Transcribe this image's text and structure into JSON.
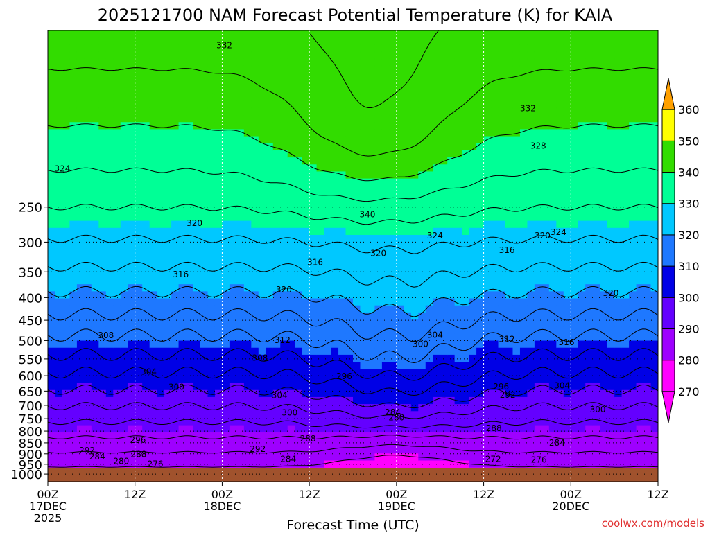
{
  "chart_data": {
    "type": "heatmap",
    "title": "2025121700 NAM Forecast Potential Temperature (K) for KAIA",
    "xlabel": "Forecast Time (UTC)",
    "ylabel": "",
    "y_ticks": [
      250,
      300,
      350,
      400,
      450,
      500,
      550,
      600,
      650,
      700,
      750,
      800,
      850,
      900,
      950,
      1000
    ],
    "y_range": [
      100,
      1040
    ],
    "x_range_hours": [
      0,
      84
    ],
    "x_ticks": [
      {
        "hour": 0,
        "l1": "00Z",
        "l2": "17DEC",
        "l3": "2025"
      },
      {
        "hour": 12,
        "l1": "12Z",
        "l2": "",
        "l3": ""
      },
      {
        "hour": 24,
        "l1": "00Z",
        "l2": "18DEC",
        "l3": ""
      },
      {
        "hour": 36,
        "l1": "12Z",
        "l2": "",
        "l3": ""
      },
      {
        "hour": 48,
        "l1": "00Z",
        "l2": "19DEC",
        "l3": ""
      },
      {
        "hour": 60,
        "l1": "12Z",
        "l2": "",
        "l3": ""
      },
      {
        "hour": 72,
        "l1": "00Z",
        "l2": "20DEC",
        "l3": ""
      },
      {
        "hour": 84,
        "l1": "12Z",
        "l2": "",
        "l3": ""
      }
    ],
    "surface_pressure": 968,
    "colorbar": {
      "levels": [
        270,
        280,
        290,
        300,
        310,
        320,
        330,
        340,
        350,
        360
      ],
      "colors": [
        "#ff00ff",
        "#9e00ff",
        "#6400ff",
        "#0000e6",
        "#1e78ff",
        "#00c8ff",
        "#00ff96",
        "#32dc00",
        "#ffff00",
        "#ffa000"
      ]
    },
    "contour_labels": [
      {
        "hour": 24.3,
        "p": 108,
        "value": "332"
      },
      {
        "hour": 2,
        "p": 205,
        "value": "324"
      },
      {
        "hour": 20.2,
        "p": 272,
        "value": "320"
      },
      {
        "hour": 18.3,
        "p": 355,
        "value": "316"
      },
      {
        "hour": 32.5,
        "p": 384,
        "value": "320"
      },
      {
        "hour": 36.8,
        "p": 333,
        "value": "316"
      },
      {
        "hour": 44,
        "p": 260,
        "value": "340"
      },
      {
        "hour": 45.5,
        "p": 318,
        "value": "320"
      },
      {
        "hour": 53.3,
        "p": 290,
        "value": "324"
      },
      {
        "hour": 63.2,
        "p": 313,
        "value": "316"
      },
      {
        "hour": 66.1,
        "p": 150,
        "value": "332"
      },
      {
        "hour": 67.5,
        "p": 182,
        "value": "328"
      },
      {
        "hour": 70.3,
        "p": 285,
        "value": "324"
      },
      {
        "hour": 68.1,
        "p": 290,
        "value": "320"
      },
      {
        "hour": 77.5,
        "p": 391,
        "value": "320"
      },
      {
        "hour": 8,
        "p": 487,
        "value": "308"
      },
      {
        "hour": 32.3,
        "p": 499,
        "value": "312"
      },
      {
        "hour": 29.2,
        "p": 547,
        "value": "308"
      },
      {
        "hour": 53.3,
        "p": 486,
        "value": "304"
      },
      {
        "hour": 51.3,
        "p": 509,
        "value": "300"
      },
      {
        "hour": 63.2,
        "p": 497,
        "value": "312"
      },
      {
        "hour": 71.4,
        "p": 505,
        "value": "316"
      },
      {
        "hour": 13.9,
        "p": 588,
        "value": "304"
      },
      {
        "hour": 17.7,
        "p": 637,
        "value": "300"
      },
      {
        "hour": 40.8,
        "p": 602,
        "value": "296"
      },
      {
        "hour": 31.9,
        "p": 664,
        "value": "304"
      },
      {
        "hour": 33.3,
        "p": 727,
        "value": "300"
      },
      {
        "hour": 62.4,
        "p": 635,
        "value": "296"
      },
      {
        "hour": 63.3,
        "p": 663,
        "value": "292"
      },
      {
        "hour": 70.8,
        "p": 632,
        "value": "304"
      },
      {
        "hour": 75.7,
        "p": 715,
        "value": "300"
      },
      {
        "hour": 12.4,
        "p": 838,
        "value": "296"
      },
      {
        "hour": 47.5,
        "p": 726,
        "value": "284"
      },
      {
        "hour": 48,
        "p": 745,
        "value": "280"
      },
      {
        "hour": 61.4,
        "p": 789,
        "value": "288"
      },
      {
        "hour": 70.1,
        "p": 850,
        "value": "284"
      },
      {
        "hour": 35.8,
        "p": 832,
        "value": "288"
      },
      {
        "hour": 28.9,
        "p": 878,
        "value": "292"
      },
      {
        "hour": 33.1,
        "p": 925,
        "value": "284"
      },
      {
        "hour": 5.4,
        "p": 884,
        "value": "292"
      },
      {
        "hour": 6.8,
        "p": 913,
        "value": "284"
      },
      {
        "hour": 12.5,
        "p": 903,
        "value": "288"
      },
      {
        "hour": 10.1,
        "p": 935,
        "value": "280"
      },
      {
        "hour": 14.8,
        "p": 948,
        "value": "276"
      },
      {
        "hour": 61.3,
        "p": 925,
        "value": "272"
      },
      {
        "hour": 67.6,
        "p": 928,
        "value": "276"
      }
    ]
  },
  "credit": "coolwx.com/models"
}
